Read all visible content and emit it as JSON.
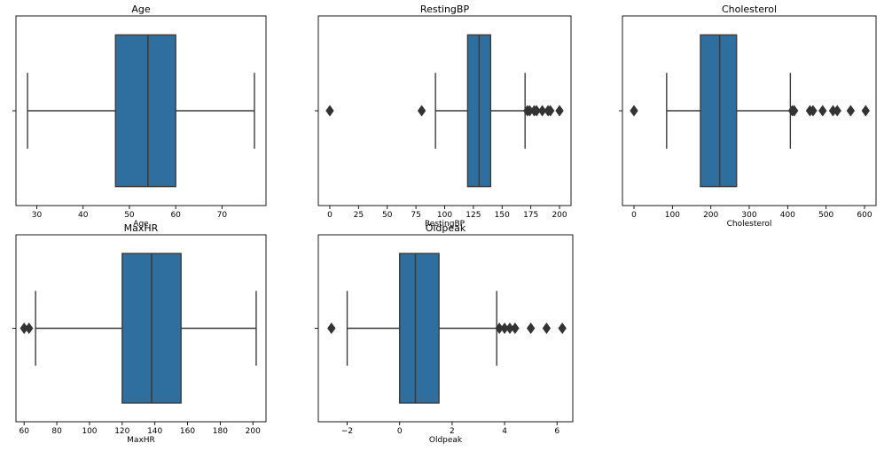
{
  "chart_data": [
    {
      "type": "box",
      "title": "Age",
      "xlabel": "Age",
      "xlim": [
        25.5,
        79.5
      ],
      "xticks": [
        30,
        40,
        50,
        60,
        70
      ],
      "box": {
        "whisker_low": 28,
        "q1": 47,
        "median": 54,
        "q3": 60,
        "whisker_high": 77
      },
      "outliers": []
    },
    {
      "type": "box",
      "title": "RestingBP",
      "xlabel": "RestingBP",
      "xlim": [
        -10,
        210
      ],
      "xticks": [
        0,
        25,
        50,
        75,
        100,
        125,
        150,
        175,
        200
      ],
      "box": {
        "whisker_low": 92,
        "q1": 120,
        "median": 130,
        "q3": 140,
        "whisker_high": 170
      },
      "outliers": [
        0,
        80,
        172,
        174,
        178,
        180,
        185,
        190,
        192,
        200
      ]
    },
    {
      "type": "box",
      "title": "Cholesterol",
      "xlabel": "Cholesterol",
      "xlim": [
        -30,
        630
      ],
      "xticks": [
        0,
        100,
        200,
        300,
        400,
        500,
        600
      ],
      "box": {
        "whisker_low": 85,
        "q1": 173,
        "median": 223,
        "q3": 267,
        "whisker_high": 407
      },
      "outliers": [
        0,
        412,
        417,
        458,
        466,
        491,
        518,
        529,
        564,
        603
      ]
    },
    {
      "type": "box",
      "title": "MaxHR",
      "xlabel": "MaxHR",
      "xlim": [
        55,
        208
      ],
      "xticks": [
        60,
        80,
        100,
        120,
        140,
        160,
        180,
        200
      ],
      "box": {
        "whisker_low": 67,
        "q1": 120,
        "median": 138,
        "q3": 156,
        "whisker_high": 202
      },
      "outliers": [
        60,
        63
      ]
    },
    {
      "type": "box",
      "title": "Oldpeak",
      "xlabel": "Oldpeak",
      "xlim": [
        -3.1,
        6.6
      ],
      "xticks": [
        -2,
        0,
        2,
        4,
        6
      ],
      "xtick_labels": [
        "−2",
        "0",
        "2",
        "4",
        "6"
      ],
      "box": {
        "whisker_low": -2.0,
        "q1": 0.0,
        "median": 0.6,
        "q3": 1.5,
        "whisker_high": 3.7
      },
      "outliers": [
        -2.6,
        3.8,
        4.0,
        4.2,
        4.4,
        5.0,
        5.6,
        6.2
      ]
    }
  ],
  "colors": {
    "box_fill": "#2f6fa0",
    "line": "#3b3b3b",
    "outlier": "#333333",
    "frame": "#000000"
  }
}
